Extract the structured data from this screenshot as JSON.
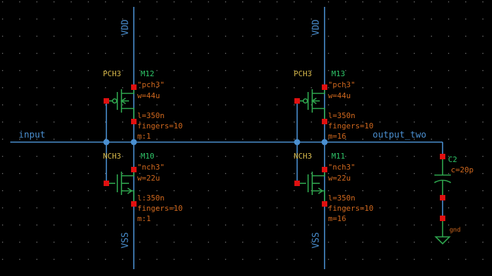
{
  "nets": {
    "input": "input",
    "output": "output_two"
  },
  "supplies": [
    {
      "top": "VDD",
      "bottom": "VSS"
    },
    {
      "top": "VDD",
      "bottom": "VSS"
    }
  ],
  "devices": [
    {
      "cell": "PCH3",
      "name": "M12",
      "params": [
        "\"pch3\"",
        "w=44u",
        "l=350n",
        "fingers=10",
        "m:1"
      ]
    },
    {
      "cell": "NCH3",
      "name": "M10",
      "params": [
        "\"nch3\"",
        "w=22u",
        "l:350n",
        "fingers=10",
        "m:1"
      ]
    },
    {
      "cell": "PCH3",
      "name": "M13",
      "params": [
        "\"pch3\"",
        "w=44u",
        "l=350n",
        "fingers=10",
        "m=16"
      ]
    },
    {
      "cell": "NCH3",
      "name": "M11",
      "params": [
        "\"nch3\"",
        "w=22u",
        "l=350n",
        "fingers=10",
        "m=16"
      ]
    }
  ],
  "capacitor": {
    "name": "C2",
    "value": "c=20p",
    "ground": "gnd"
  }
}
